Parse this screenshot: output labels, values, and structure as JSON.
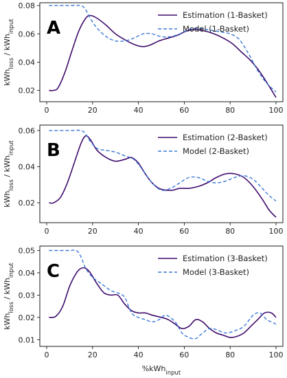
{
  "figure": {
    "xlabel": "%kWh",
    "xlabel_sub": "input",
    "ylabel_main_1": "kWh",
    "ylabel_sub_1": "loss",
    "ylabel_sep": " / kWh",
    "ylabel_sub_2": "input"
  },
  "colors": {
    "estimation": "#3d0a6b",
    "model": "#3a78d8"
  },
  "chart_data": [
    {
      "type": "line",
      "panel": "A",
      "xlim": [
        -3,
        103
      ],
      "ylim": [
        0.012,
        0.082
      ],
      "xticks": [
        0,
        20,
        40,
        60,
        80,
        100
      ],
      "yticks": [
        0.02,
        0.04,
        0.06,
        0.08
      ],
      "ytick_labels": [
        "0.02",
        "0.04",
        "0.06",
        "0.08"
      ],
      "legend_position": "top-right",
      "series": [
        {
          "name": "Estimation (1-Basket)",
          "style": "solid",
          "x": [
            1,
            3,
            5,
            8,
            11,
            14,
            17,
            19,
            22,
            26,
            30,
            35,
            39,
            42,
            45,
            49,
            53,
            57,
            61,
            65,
            69,
            73,
            77,
            81,
            85,
            89,
            93,
            97,
            100
          ],
          "y": [
            0.02,
            0.02,
            0.022,
            0.033,
            0.048,
            0.062,
            0.071,
            0.073,
            0.071,
            0.066,
            0.06,
            0.055,
            0.052,
            0.051,
            0.052,
            0.055,
            0.057,
            0.059,
            0.062,
            0.063,
            0.062,
            0.06,
            0.057,
            0.053,
            0.047,
            0.041,
            0.033,
            0.023,
            0.015
          ]
        },
        {
          "name": "Model (1-Basket)",
          "style": "dashed",
          "x": [
            1,
            5,
            10,
            15,
            17,
            19,
            22,
            26,
            30,
            34,
            38,
            42,
            46,
            50,
            54,
            58,
            62,
            66,
            70,
            74,
            77,
            80,
            84,
            88,
            92,
            96,
            100
          ],
          "y": [
            0.08,
            0.08,
            0.08,
            0.08,
            0.077,
            0.071,
            0.064,
            0.058,
            0.055,
            0.055,
            0.057,
            0.06,
            0.06,
            0.058,
            0.058,
            0.06,
            0.063,
            0.064,
            0.063,
            0.062,
            0.061,
            0.06,
            0.056,
            0.046,
            0.034,
            0.025,
            0.019
          ]
        }
      ]
    },
    {
      "type": "line",
      "panel": "B",
      "xlim": [
        -3,
        103
      ],
      "ylim": [
        0.009,
        0.063
      ],
      "xticks": [
        0,
        20,
        40,
        60,
        80,
        100
      ],
      "yticks": [
        0.02,
        0.04,
        0.06
      ],
      "ytick_labels": [
        "0.02",
        "0.04",
        "0.06"
      ],
      "legend_position": "top-right",
      "series": [
        {
          "name": "Estimation (2-Basket)",
          "style": "solid",
          "x": [
            1,
            3,
            6,
            9,
            12,
            15,
            17,
            19,
            22,
            26,
            30,
            34,
            37,
            40,
            43,
            46,
            49,
            52,
            55,
            58,
            62,
            66,
            70,
            74,
            78,
            82,
            86,
            90,
            94,
            97,
            100
          ],
          "y": [
            0.02,
            0.02,
            0.023,
            0.031,
            0.042,
            0.053,
            0.057,
            0.055,
            0.049,
            0.045,
            0.043,
            0.044,
            0.045,
            0.042,
            0.036,
            0.031,
            0.028,
            0.027,
            0.027,
            0.028,
            0.028,
            0.029,
            0.031,
            0.034,
            0.036,
            0.036,
            0.034,
            0.029,
            0.022,
            0.016,
            0.012
          ]
        },
        {
          "name": "Model (2-Basket)",
          "style": "dashed",
          "x": [
            1,
            5,
            10,
            15,
            17,
            19,
            22,
            26,
            30,
            34,
            38,
            42,
            46,
            50,
            54,
            58,
            62,
            66,
            70,
            74,
            78,
            82,
            86,
            90,
            94,
            97,
            100
          ],
          "y": [
            0.06,
            0.06,
            0.06,
            0.06,
            0.058,
            0.054,
            0.05,
            0.049,
            0.048,
            0.046,
            0.044,
            0.038,
            0.031,
            0.027,
            0.028,
            0.031,
            0.034,
            0.034,
            0.032,
            0.031,
            0.032,
            0.034,
            0.035,
            0.033,
            0.028,
            0.024,
            0.021
          ]
        }
      ]
    },
    {
      "type": "line",
      "panel": "C",
      "xlim": [
        -3,
        103
      ],
      "ylim": [
        0.007,
        0.052
      ],
      "xticks": [
        0,
        20,
        40,
        60,
        80,
        100
      ],
      "yticks": [
        0.01,
        0.02,
        0.03,
        0.04,
        0.05
      ],
      "ytick_labels": [
        "0.01",
        "0.02",
        "0.03",
        "0.04",
        "0.05"
      ],
      "legend_position": "top-right",
      "series": [
        {
          "name": "Estimation (3-Basket)",
          "style": "solid",
          "x": [
            1,
            4,
            7,
            10,
            13,
            15,
            17,
            19,
            22,
            25,
            28,
            31,
            34,
            37,
            40,
            43,
            46,
            50,
            53,
            56,
            59,
            62,
            65,
            68,
            71,
            74,
            77,
            80,
            83,
            86,
            89,
            92,
            95,
            98,
            100
          ],
          "y": [
            0.02,
            0.0205,
            0.025,
            0.034,
            0.04,
            0.042,
            0.042,
            0.04,
            0.035,
            0.031,
            0.03,
            0.03,
            0.026,
            0.023,
            0.022,
            0.022,
            0.021,
            0.02,
            0.019,
            0.017,
            0.015,
            0.016,
            0.019,
            0.018,
            0.015,
            0.013,
            0.012,
            0.011,
            0.0115,
            0.013,
            0.016,
            0.019,
            0.022,
            0.022,
            0.02
          ]
        },
        {
          "name": "Model (3-Basket)",
          "style": "dashed",
          "x": [
            1,
            5,
            10,
            13,
            15,
            17,
            20,
            24,
            28,
            31,
            34,
            37,
            40,
            43,
            46,
            49,
            52,
            56,
            59,
            62,
            65,
            68,
            71,
            74,
            78,
            82,
            86,
            90,
            93,
            96,
            100
          ],
          "y": [
            0.05,
            0.05,
            0.05,
            0.05,
            0.047,
            0.042,
            0.038,
            0.035,
            0.032,
            0.031,
            0.029,
            0.022,
            0.02,
            0.019,
            0.018,
            0.019,
            0.021,
            0.018,
            0.013,
            0.011,
            0.0105,
            0.013,
            0.015,
            0.0145,
            0.013,
            0.014,
            0.016,
            0.021,
            0.022,
            0.019,
            0.017
          ]
        }
      ]
    }
  ]
}
